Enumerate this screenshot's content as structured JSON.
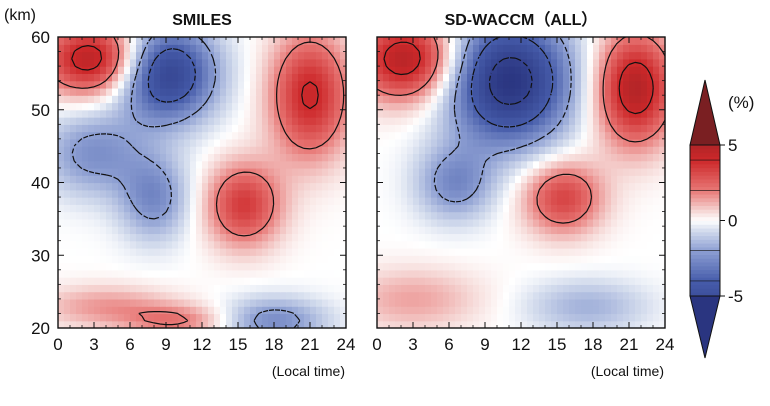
{
  "chart_data": {
    "type": "heatmap",
    "panels": [
      {
        "title": "SMILES",
        "x_ticks": [
          0,
          3,
          6,
          9,
          12,
          15,
          18,
          21,
          24
        ],
        "xlim": [
          0,
          24
        ],
        "xlabel": "(Local time)",
        "y_ticks": [
          20,
          30,
          40,
          50,
          60
        ],
        "ylim": [
          20,
          60
        ],
        "ylabel": "(km)",
        "features": [
          {
            "type": "positive",
            "x": 3,
            "y": 57,
            "amp": 5,
            "sx": 3.0,
            "sy": 3.5
          },
          {
            "type": "negative",
            "x": 9,
            "y": 55,
            "amp": 6,
            "sx": 2.8,
            "sy": 4.5
          },
          {
            "type": "negative",
            "x": 3,
            "y": 44,
            "amp": 2.4,
            "sx": 3.0,
            "sy": 4.0
          },
          {
            "type": "negative",
            "x": 8,
            "y": 38,
            "amp": 2.6,
            "sx": 2.0,
            "sy": 4.0
          },
          {
            "type": "positive",
            "x": 15.5,
            "y": 37,
            "amp": 3.6,
            "sx": 2.2,
            "sy": 4.0
          },
          {
            "type": "positive",
            "x": 21,
            "y": 52,
            "amp": 4.2,
            "sx": 2.3,
            "sy": 6.0
          },
          {
            "type": "positive",
            "x": 4,
            "y": 23,
            "amp": 1.6,
            "sx": 4.0,
            "sy": 2.0
          },
          {
            "type": "positive",
            "x": 10,
            "y": 21,
            "amp": 2.0,
            "sx": 3.0,
            "sy": 1.5
          },
          {
            "type": "negative",
            "x": 18,
            "y": 21,
            "amp": 2.6,
            "sx": 3.0,
            "sy": 2.2
          }
        ]
      },
      {
        "title": "SD-WACCM（ALL）",
        "x_ticks": [
          0,
          3,
          6,
          9,
          12,
          15,
          18,
          21,
          24
        ],
        "xlim": [
          0,
          24
        ],
        "xlabel": "(Local time)",
        "y_ticks": [
          20,
          30,
          40,
          50,
          60
        ],
        "ylim": [
          20,
          60
        ],
        "features": [
          {
            "type": "positive",
            "x": 2.5,
            "y": 57,
            "amp": 5,
            "sx": 3.0,
            "sy": 4.0
          },
          {
            "type": "negative",
            "x": 11,
            "y": 54,
            "amp": 7,
            "sx": 3.5,
            "sy": 6.0
          },
          {
            "type": "negative",
            "x": 6.5,
            "y": 40,
            "amp": 2.6,
            "sx": 2.2,
            "sy": 3.5
          },
          {
            "type": "positive",
            "x": 15.5,
            "y": 38,
            "amp": 3.4,
            "sx": 2.3,
            "sy": 3.5
          },
          {
            "type": "positive",
            "x": 21.5,
            "y": 53,
            "amp": 5,
            "sx": 2.3,
            "sy": 5.5
          },
          {
            "type": "positive",
            "x": 3,
            "y": 24,
            "amp": 1.4,
            "sx": 4.0,
            "sy": 3.0
          },
          {
            "type": "negative",
            "x": 17.5,
            "y": 23,
            "amp": 1.6,
            "sx": 3.5,
            "sy": 2.5
          }
        ]
      }
    ],
    "colorbar": {
      "unit": "(%)",
      "ticks": [
        5,
        0,
        -5
      ],
      "range": [
        -7,
        7
      ],
      "extend": "both",
      "high_color": "#7a1f22",
      "low_color": "#2a3580",
      "neutral_color": "#ffffff"
    },
    "contours": {
      "positive_style": "solid",
      "negative_style": "dashed",
      "levels": [
        -6,
        -4,
        -2,
        2,
        4,
        6
      ]
    }
  }
}
